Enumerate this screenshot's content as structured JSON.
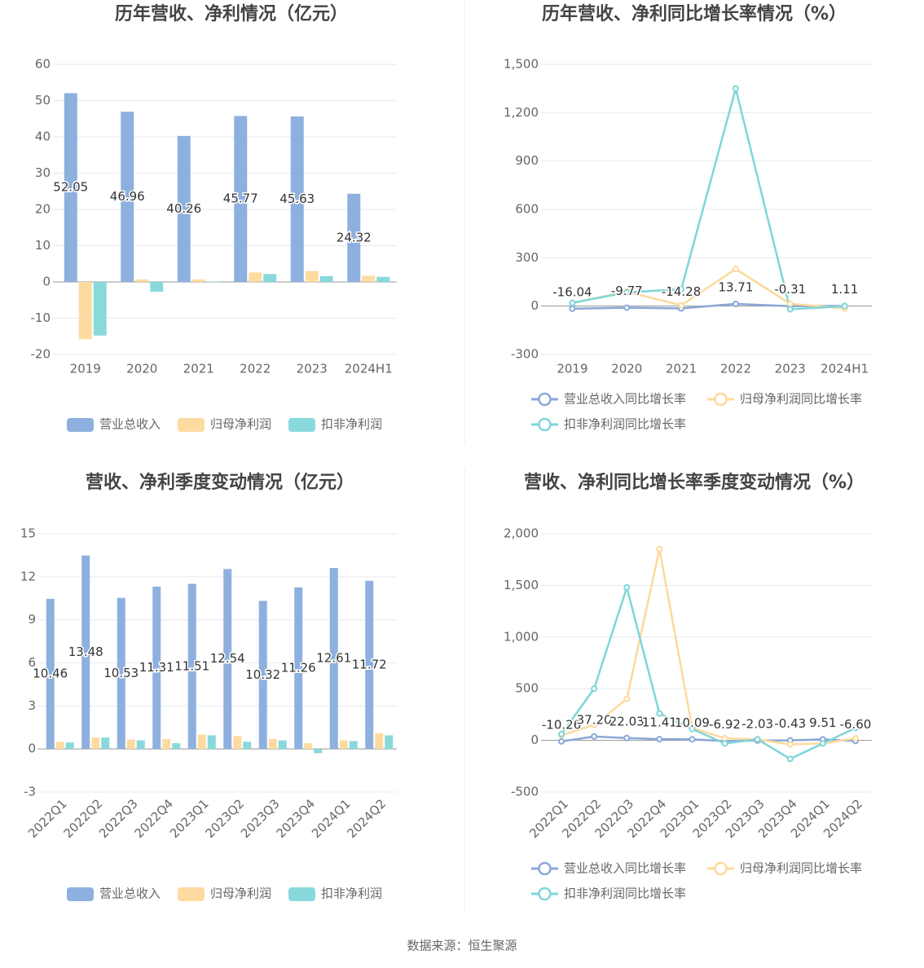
{
  "chart_data": [
    {
      "type": "bar",
      "title": "历年营收、净利情况（亿元）",
      "categories": [
        "2019",
        "2020",
        "2021",
        "2022",
        "2023",
        "2024H1"
      ],
      "series": [
        {
          "name": "营业总收入",
          "color": "#8eb0de",
          "show_labels": true,
          "values": [
            52.05,
            46.96,
            40.26,
            45.77,
            45.63,
            24.32
          ]
        },
        {
          "name": "归母净利润",
          "color": "#fddba0",
          "values": [
            -15.8,
            0.7,
            0.7,
            2.6,
            3.0,
            1.7
          ]
        },
        {
          "name": "扣非净利润",
          "color": "#89d9dc",
          "values": [
            -14.8,
            -2.7,
            0.1,
            2.2,
            1.6,
            1.4
          ]
        }
      ],
      "ylim": [
        -20,
        60
      ],
      "yticks": [
        -20,
        -10,
        0,
        10,
        20,
        30,
        40,
        50,
        60
      ],
      "grid": true
    },
    {
      "type": "line",
      "title": "历年营收、净利同比增长率情况（%）",
      "categories": [
        "2019",
        "2020",
        "2021",
        "2022",
        "2023",
        "2024H1"
      ],
      "series": [
        {
          "name": "营业总收入同比增长率",
          "color": "#8aa7d8",
          "show_labels": true,
          "values": [
            -16.04,
            -9.77,
            -14.28,
            13.71,
            -0.31,
            1.11
          ]
        },
        {
          "name": "归母净利润同比增长率",
          "color": "#fdd99b",
          "values": [
            20,
            90,
            5,
            230,
            15,
            -15
          ]
        },
        {
          "name": "扣非净利润同比增长率",
          "color": "#7fd6d8",
          "values": [
            20,
            85,
            105,
            1350,
            -20,
            0
          ]
        }
      ],
      "ylim": [
        -300,
        1500
      ],
      "yticks": [
        -300,
        0,
        300,
        600,
        900,
        {
          "value": 1200,
          "label": "1,200"
        },
        {
          "value": 1500,
          "label": "1,500"
        }
      ],
      "grid": true
    },
    {
      "type": "bar",
      "title": "营收、净利季度变动情况（亿元）",
      "categories": [
        "2022Q1",
        "2022Q2",
        "2022Q3",
        "2022Q4",
        "2023Q1",
        "2023Q2",
        "2023Q3",
        "2023Q4",
        "2024Q1",
        "2024Q2"
      ],
      "series": [
        {
          "name": "营业总收入",
          "color": "#8eb0de",
          "show_labels": true,
          "values": [
            10.46,
            13.48,
            10.53,
            11.31,
            11.51,
            12.54,
            10.32,
            11.26,
            12.61,
            11.72
          ]
        },
        {
          "name": "归母净利润",
          "color": "#fddba0",
          "values": [
            0.5,
            0.8,
            0.65,
            0.7,
            1.0,
            0.9,
            0.7,
            0.4,
            0.6,
            1.1
          ]
        },
        {
          "name": "扣非净利润",
          "color": "#89d9dc",
          "values": [
            0.45,
            0.8,
            0.6,
            0.4,
            0.95,
            0.5,
            0.6,
            -0.3,
            0.55,
            0.95
          ]
        }
      ],
      "ylim": [
        -3,
        15
      ],
      "yticks": [
        -3,
        0,
        3,
        6,
        9,
        12,
        15
      ],
      "grid": true
    },
    {
      "type": "line",
      "title": "营收、净利同比增长率季度变动情况（%）",
      "categories": [
        "2022Q1",
        "2022Q2",
        "2022Q3",
        "2022Q4",
        "2023Q1",
        "2023Q2",
        "2023Q3",
        "2023Q4",
        "2024Q1",
        "2024Q2"
      ],
      "series": [
        {
          "name": "营业总收入同比增长率",
          "color": "#8aa7d8",
          "show_labels": true,
          "values": [
            -10.26,
            37.2,
            22.03,
            11.41,
            10.09,
            -6.92,
            -2.03,
            -0.43,
            9.51,
            -6.6
          ],
          "value_labels": [
            "-10.26",
            "37.20",
            "22.03",
            "11.41",
            "10.09",
            "-6.92",
            "-2.03",
            "-0.43",
            "9.51",
            "-6.60"
          ]
        },
        {
          "name": "归母净利润同比增长率",
          "color": "#fdd99b",
          "values": [
            50,
            150,
            400,
            1850,
            120,
            20,
            10,
            -40,
            -30,
            20
          ]
        },
        {
          "name": "扣非净利润同比增长率",
          "color": "#7fd6d8",
          "values": [
            60,
            500,
            1480,
            260,
            110,
            -30,
            10,
            -180,
            -30,
            120
          ]
        }
      ],
      "ylim": [
        -500,
        2000
      ],
      "yticks": [
        -500,
        0,
        500,
        {
          "value": 1000,
          "label": "1,000"
        },
        {
          "value": 1500,
          "label": "1,500"
        },
        {
          "value": 2000,
          "label": "2,000"
        }
      ],
      "grid": true
    }
  ],
  "source": "数据来源：恒生聚源"
}
